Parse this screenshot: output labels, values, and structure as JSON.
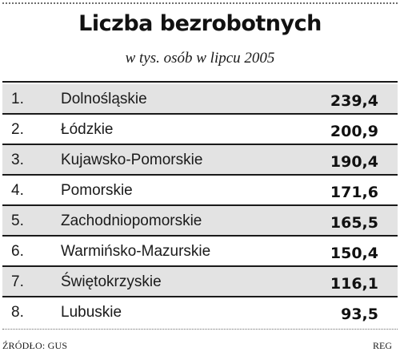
{
  "chart_data": {
    "type": "table",
    "title": "Liczba bezrobotnych",
    "subtitle": "w tys. osób w lipcu 2005",
    "rows": [
      {
        "rank": "1.",
        "region": "Dolnośląskie",
        "value": "239,4"
      },
      {
        "rank": "2.",
        "region": "Łódzkie",
        "value": "200,9"
      },
      {
        "rank": "3.",
        "region": "Kujawsko-Pomorskie",
        "value": "190,4"
      },
      {
        "rank": "4.",
        "region": "Pomorskie",
        "value": "171,6"
      },
      {
        "rank": "5.",
        "region": "Zachodniopomorskie",
        "value": "165,5"
      },
      {
        "rank": "6.",
        "region": "Warmińsko-Mazurskie",
        "value": "150,4"
      },
      {
        "rank": "7.",
        "region": "Świętokrzyskie",
        "value": "116,1"
      },
      {
        "rank": "8.",
        "region": "Lubuskie",
        "value": "93,5"
      }
    ],
    "source": "ŹRÓDŁO: GUS",
    "credit": "REG"
  },
  "colors": {
    "text": "#1a1a1a",
    "shaded_row": "#e3e3e3",
    "background": "#ffffff",
    "rule": "#1a1a1a",
    "dotted_rule": "#6e6e6e"
  }
}
